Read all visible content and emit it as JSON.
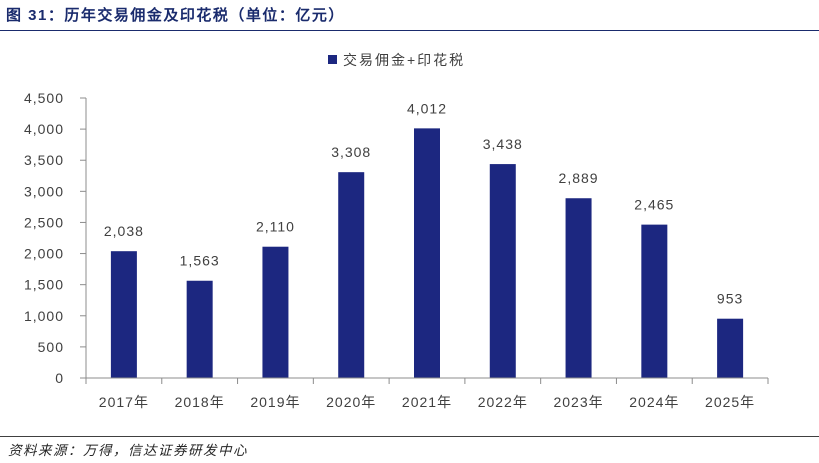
{
  "figure": {
    "source": "资料来源：万得，信达证券研发中心"
  },
  "colors": {
    "title": "#1a2b6d",
    "bar": "#1c2780",
    "axis": "#8c8c8c",
    "rule": "#404040"
  },
  "chart_data": {
    "type": "bar",
    "title": "图 31：历年交易佣金及印花税（单位：亿元）",
    "xlabel": "",
    "ylabel": "",
    "categories": [
      "2017年",
      "2018年",
      "2019年",
      "2020年",
      "2021年",
      "2022年",
      "2023年",
      "2024年",
      "2025年"
    ],
    "series": [
      {
        "name": "交易佣金+印花税",
        "values": [
          2038,
          1563,
          2110,
          3308,
          4012,
          3438,
          2889,
          2465,
          953
        ],
        "data_labels": [
          "2,038",
          "1,563",
          "2,110",
          "3,308",
          "4,012",
          "3,438",
          "2,889",
          "2,465",
          "953"
        ]
      }
    ],
    "ylim": [
      0,
      4500
    ],
    "yticks": [
      0,
      500,
      1000,
      1500,
      2000,
      2500,
      3000,
      3500,
      4000,
      4500
    ],
    "ytick_labels": [
      "0",
      "500",
      "1,000",
      "1,500",
      "2,000",
      "2,500",
      "3,000",
      "3,500",
      "4,000",
      "4,500"
    ],
    "grid": false,
    "legend_position": "top"
  }
}
